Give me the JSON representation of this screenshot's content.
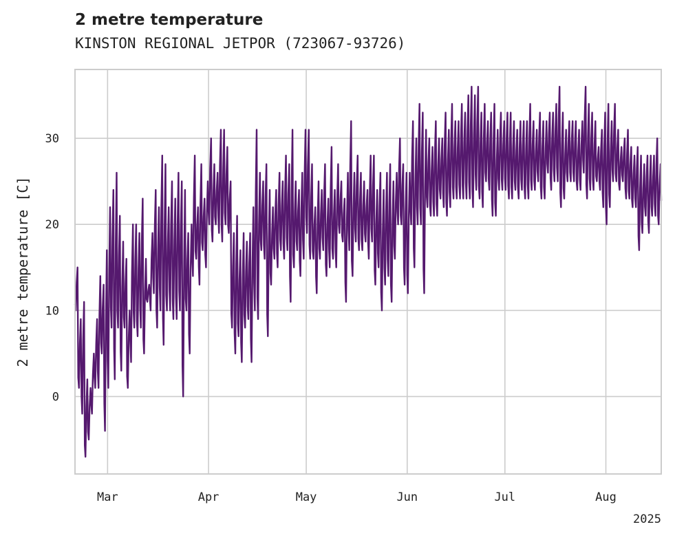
{
  "chart_data": {
    "type": "line",
    "title": "2 metre temperature",
    "subtitle": "KINSTON REGIONAL JETPOR (723067-93726)",
    "ylabel": "2 metre temperature [C]",
    "xlabel": "",
    "year_label": "2025",
    "x_range": [
      "2025-02-19",
      "2025-08-18"
    ],
    "ylim": [
      -9,
      38
    ],
    "grid": true,
    "line_color": "#55196e",
    "x_ticks": [
      {
        "date": "2025-03-01",
        "label": "Mar"
      },
      {
        "date": "2025-04-01",
        "label": "Apr"
      },
      {
        "date": "2025-05-01",
        "label": "May"
      },
      {
        "date": "2025-06-01",
        "label": "Jun"
      },
      {
        "date": "2025-07-01",
        "label": "Jul"
      },
      {
        "date": "2025-08-01",
        "label": "Aug"
      }
    ],
    "y_ticks": [
      {
        "value": 0,
        "label": "0"
      },
      {
        "value": 10,
        "label": "10"
      },
      {
        "value": 20,
        "label": "20"
      },
      {
        "value": 30,
        "label": "30"
      }
    ],
    "series": [
      {
        "x": [
          "2025-02-19",
          "2025-02-20",
          "2025-02-21",
          "2025-02-22",
          "2025-02-23",
          "2025-02-24",
          "2025-02-25",
          "2025-02-26",
          "2025-02-27",
          "2025-02-28",
          "2025-03-01",
          "2025-03-02",
          "2025-03-03",
          "2025-03-04",
          "2025-03-05",
          "2025-03-06",
          "2025-03-07",
          "2025-03-08",
          "2025-03-09",
          "2025-03-10",
          "2025-03-11",
          "2025-03-12",
          "2025-03-13",
          "2025-03-14",
          "2025-03-15",
          "2025-03-16",
          "2025-03-17",
          "2025-03-18",
          "2025-03-19",
          "2025-03-20",
          "2025-03-21",
          "2025-03-22",
          "2025-03-23",
          "2025-03-24",
          "2025-03-25",
          "2025-03-26",
          "2025-03-27",
          "2025-03-28",
          "2025-03-29",
          "2025-03-30",
          "2025-03-31",
          "2025-04-01",
          "2025-04-02",
          "2025-04-03",
          "2025-04-04",
          "2025-04-05",
          "2025-04-06",
          "2025-04-07",
          "2025-04-08",
          "2025-04-09",
          "2025-04-10",
          "2025-04-11",
          "2025-04-12",
          "2025-04-13",
          "2025-04-14",
          "2025-04-15",
          "2025-04-16",
          "2025-04-17",
          "2025-04-18",
          "2025-04-19",
          "2025-04-20",
          "2025-04-21",
          "2025-04-22",
          "2025-04-23",
          "2025-04-24",
          "2025-04-25",
          "2025-04-26",
          "2025-04-27",
          "2025-04-28",
          "2025-04-29",
          "2025-04-30",
          "2025-05-01",
          "2025-05-02",
          "2025-05-03",
          "2025-05-04",
          "2025-05-05",
          "2025-05-06",
          "2025-05-07",
          "2025-05-08",
          "2025-05-09",
          "2025-05-10",
          "2025-05-11",
          "2025-05-12",
          "2025-05-13",
          "2025-05-14",
          "2025-05-15",
          "2025-05-16",
          "2025-05-17",
          "2025-05-18",
          "2025-05-19",
          "2025-05-20",
          "2025-05-21",
          "2025-05-22",
          "2025-05-23",
          "2025-05-24",
          "2025-05-25",
          "2025-05-26",
          "2025-05-27",
          "2025-05-28",
          "2025-05-29",
          "2025-05-30",
          "2025-05-31",
          "2025-06-01",
          "2025-06-02",
          "2025-06-03",
          "2025-06-04",
          "2025-06-05",
          "2025-06-06",
          "2025-06-07",
          "2025-06-08",
          "2025-06-09",
          "2025-06-10",
          "2025-06-11",
          "2025-06-12",
          "2025-06-13",
          "2025-06-14",
          "2025-06-15",
          "2025-06-16",
          "2025-06-17",
          "2025-06-18",
          "2025-06-19",
          "2025-06-20",
          "2025-06-21",
          "2025-06-22",
          "2025-06-23",
          "2025-06-24",
          "2025-06-25",
          "2025-06-26",
          "2025-06-27",
          "2025-06-28",
          "2025-06-29",
          "2025-06-30",
          "2025-07-01",
          "2025-07-02",
          "2025-07-03",
          "2025-07-04",
          "2025-07-05",
          "2025-07-06",
          "2025-07-07",
          "2025-07-08",
          "2025-07-09",
          "2025-07-10",
          "2025-07-11",
          "2025-07-12",
          "2025-07-13",
          "2025-07-14",
          "2025-07-15",
          "2025-07-16",
          "2025-07-17",
          "2025-07-18",
          "2025-07-19",
          "2025-07-20",
          "2025-07-21",
          "2025-07-22",
          "2025-07-23",
          "2025-07-24",
          "2025-07-25",
          "2025-07-26",
          "2025-07-27",
          "2025-07-28",
          "2025-07-29",
          "2025-07-30",
          "2025-07-31",
          "2025-08-01",
          "2025-08-02",
          "2025-08-03",
          "2025-08-04",
          "2025-08-05",
          "2025-08-06",
          "2025-08-07",
          "2025-08-08",
          "2025-08-09",
          "2025-08-10",
          "2025-08-11",
          "2025-08-12",
          "2025-08-13",
          "2025-08-14",
          "2025-08-15",
          "2025-08-16",
          "2025-08-17",
          "2025-08-18"
        ],
        "min": [
          10,
          1,
          -2,
          -7,
          -5,
          -2,
          1,
          1,
          5,
          -4,
          1,
          8,
          2,
          8,
          3,
          8,
          1,
          4,
          8,
          7,
          8,
          5,
          11,
          10,
          12,
          8,
          10,
          6,
          10,
          10,
          9,
          9,
          10,
          0,
          10,
          5,
          14,
          16,
          13,
          17,
          15,
          20,
          18,
          20,
          19,
          18,
          20,
          19,
          8,
          5,
          7,
          4,
          8,
          9,
          4,
          10,
          9,
          17,
          16,
          7,
          13,
          16,
          15,
          17,
          16,
          17,
          11,
          15,
          17,
          14,
          16,
          19,
          16,
          16,
          12,
          16,
          17,
          14,
          15,
          16,
          15,
          19,
          18,
          11,
          17,
          14,
          18,
          17,
          17,
          18,
          16,
          18,
          13,
          15,
          10,
          13,
          14,
          11,
          16,
          20,
          20,
          13,
          12,
          20,
          15,
          20,
          20,
          12,
          22,
          21,
          21,
          21,
          23,
          22,
          21,
          22,
          23,
          23,
          23,
          23,
          23,
          23,
          22,
          24,
          23,
          22,
          25,
          24,
          21,
          21,
          24,
          24,
          24,
          23,
          23,
          24,
          23,
          24,
          23,
          23,
          24,
          24,
          25,
          23,
          23,
          26,
          24,
          25,
          25,
          22,
          23,
          25,
          25,
          25,
          24,
          24,
          26,
          23,
          24,
          24,
          25,
          24,
          22,
          20,
          22,
          25,
          25,
          24,
          25,
          23,
          23,
          22,
          22,
          17,
          19,
          21,
          19,
          21,
          21,
          20,
          22,
          21,
          21,
          21,
          22,
          23
        ],
        "max": [
          15,
          9,
          11,
          2,
          1,
          5,
          9,
          14,
          13,
          17,
          22,
          24,
          26,
          21,
          18,
          16,
          10,
          20,
          20,
          19,
          23,
          16,
          13,
          19,
          24,
          22,
          28,
          27,
          22,
          25,
          23,
          26,
          25,
          24,
          19,
          20,
          28,
          22,
          27,
          23,
          25,
          30,
          27,
          26,
          31,
          31,
          29,
          25,
          19,
          21,
          17,
          19,
          18,
          19,
          22,
          31,
          26,
          25,
          27,
          24,
          22,
          24,
          26,
          25,
          28,
          27,
          31,
          25,
          24,
          26,
          31,
          31,
          27,
          22,
          25,
          24,
          27,
          23,
          29,
          24,
          27,
          25,
          23,
          26,
          32,
          26,
          28,
          26,
          25,
          24,
          28,
          28,
          24,
          26,
          24,
          26,
          27,
          25,
          26,
          30,
          27,
          26,
          26,
          32,
          30,
          34,
          33,
          31,
          30,
          29,
          32,
          30,
          30,
          33,
          31,
          34,
          32,
          32,
          34,
          33,
          35,
          36,
          35,
          36,
          33,
          34,
          32,
          33,
          34,
          31,
          33,
          32,
          33,
          33,
          32,
          31,
          32,
          32,
          32,
          34,
          32,
          31,
          33,
          32,
          32,
          33,
          33,
          34,
          36,
          33,
          31,
          32,
          32,
          32,
          31,
          32,
          36,
          34,
          33,
          32,
          29,
          31,
          33,
          34,
          32,
          34,
          31,
          29,
          30,
          31,
          29,
          28,
          29,
          28,
          27,
          28,
          28,
          28,
          30,
          27,
          27,
          28,
          28,
          29,
          31,
          32
        ]
      }
    ]
  }
}
